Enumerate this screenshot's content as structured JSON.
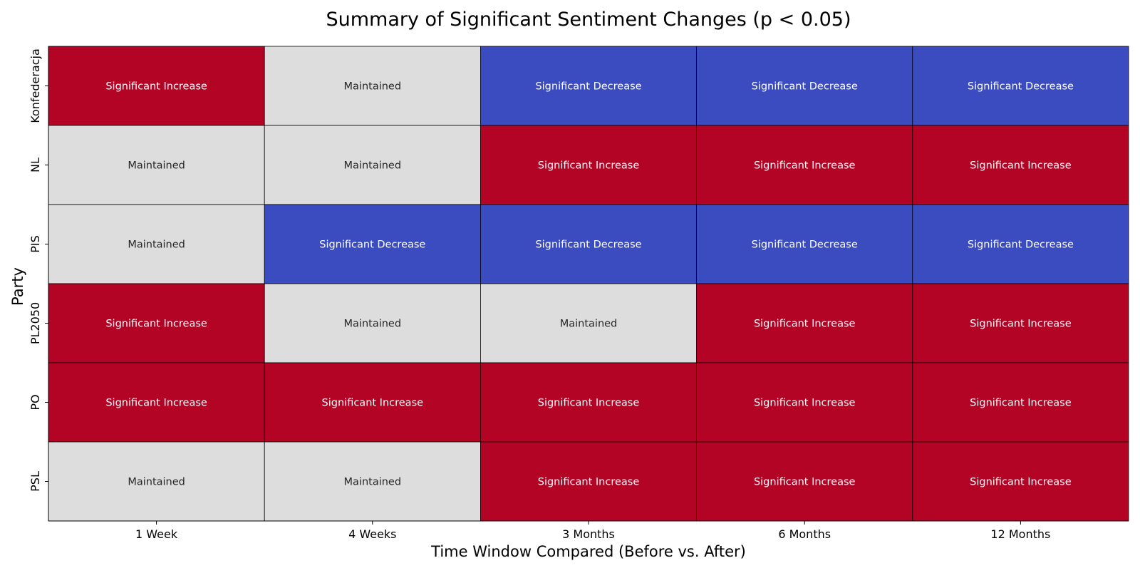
{
  "chart_data": {
    "type": "heatmap",
    "title": "Summary of Significant Sentiment Changes (p < 0.05)",
    "xlabel": "Time Window Compared (Before vs. After)",
    "ylabel": "Party",
    "columns": [
      "1 Week",
      "4 Weeks",
      "3 Months",
      "6 Months",
      "12 Months"
    ],
    "rows": [
      "Konfederacja",
      "NL",
      "PIS",
      "PL2050",
      "PO",
      "PSL"
    ],
    "cells": [
      [
        "Significant Increase",
        "Maintained",
        "Significant Decrease",
        "Significant Decrease",
        "Significant Decrease"
      ],
      [
        "Maintained",
        "Maintained",
        "Significant Increase",
        "Significant Increase",
        "Significant Increase"
      ],
      [
        "Maintained",
        "Significant Decrease",
        "Significant Decrease",
        "Significant Decrease",
        "Significant Decrease"
      ],
      [
        "Significant Increase",
        "Maintained",
        "Maintained",
        "Significant Increase",
        "Significant Increase"
      ],
      [
        "Significant Increase",
        "Significant Increase",
        "Significant Increase",
        "Significant Increase",
        "Significant Increase"
      ],
      [
        "Maintained",
        "Maintained",
        "Significant Increase",
        "Significant Increase",
        "Significant Increase"
      ]
    ],
    "category_colors": {
      "Significant Increase": "#b40426",
      "Maintained": "#dddddd",
      "Significant Decrease": "#3b4cc0"
    },
    "text_colors": {
      "Significant Increase": "#ffffff",
      "Maintained": "#262626",
      "Significant Decrease": "#ffffff"
    },
    "cell_border_color": "#000000",
    "colorbar": false,
    "grid": false
  }
}
